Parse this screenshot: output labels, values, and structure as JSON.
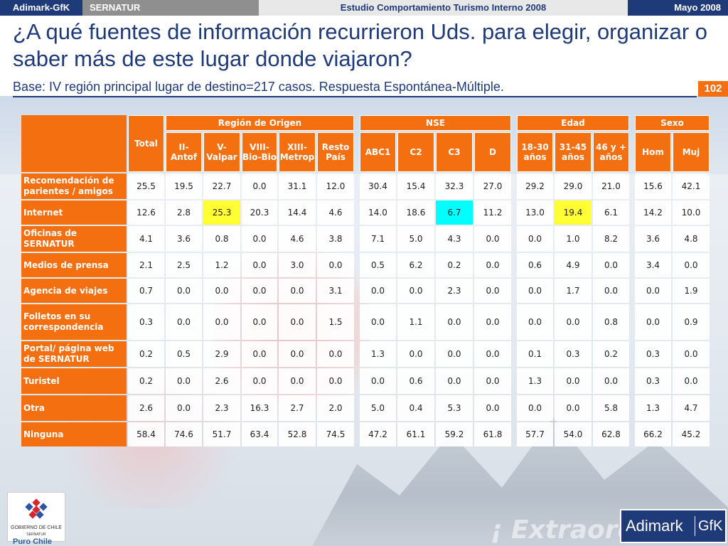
{
  "topbar": {
    "brand": "Adimark-GfK",
    "client": "SERNATUR",
    "study": "Estudio Comportamiento Turismo Interno 2008",
    "date": "Mayo 2008"
  },
  "title": "¿A qué fuentes de información recurrieron Uds. para elegir, organizar o saber más de este lugar donde viajaron?",
  "subtitle": "Base: IV región principal lugar de destino=217 casos.  Respuesta Espontánea-Múltiple.",
  "page_number": "102",
  "table": {
    "total_header": "Total",
    "groups": [
      "Región de Origen",
      "NSE",
      "Edad",
      "Sexo"
    ],
    "region_cols": [
      {
        "line1": "II-",
        "line2": "Antof"
      },
      {
        "line1": "V-",
        "line2": "Valpar"
      },
      {
        "line1": "VIII-",
        "line2": "Bio-Bio"
      },
      {
        "line1": "XIII-",
        "line2": "Metrop"
      },
      {
        "line1": "Resto",
        "line2": "País"
      }
    ],
    "nse_cols": [
      "ABC1",
      "C2",
      "C3",
      "D"
    ],
    "edad_cols": [
      {
        "line1": "18-30",
        "line2": "años"
      },
      {
        "line1": "31-45",
        "line2": "años"
      },
      {
        "line1": "46 y +",
        "line2": "años"
      }
    ],
    "sexo_cols": [
      "Hom",
      "Muj"
    ],
    "rows": [
      {
        "label": "Recomendación de parientes / amigos",
        "total": "25.5",
        "region": [
          "19.5",
          "22.7",
          "0.0",
          "31.1",
          "12.0"
        ],
        "nse": [
          "30.4",
          "15.4",
          "32.3",
          "27.0"
        ],
        "edad": [
          "29.2",
          "29.0",
          "21.0"
        ],
        "sexo": [
          "15.6",
          "42.1"
        ]
      },
      {
        "label": "Internet",
        "total": "12.6",
        "region": [
          "2.8",
          "25.3",
          "20.3",
          "14.4",
          "4.6"
        ],
        "nse": [
          "14.0",
          "18.6",
          "6.7",
          "11.2"
        ],
        "edad": [
          "13.0",
          "19.4",
          "6.1"
        ],
        "sexo": [
          "14.2",
          "10.0"
        ]
      },
      {
        "label": "Oficinas de SERNATUR",
        "total": "4.1",
        "region": [
          "3.6",
          "0.8",
          "0.0",
          "4.6",
          "3.8"
        ],
        "nse": [
          "7.1",
          "5.0",
          "4.3",
          "0.0"
        ],
        "edad": [
          "0.0",
          "1.0",
          "8.2"
        ],
        "sexo": [
          "3.6",
          "4.8"
        ]
      },
      {
        "label": "Medios de prensa",
        "total": "2.1",
        "region": [
          "2.5",
          "1.2",
          "0.0",
          "3.0",
          "0.0"
        ],
        "nse": [
          "0.5",
          "6.2",
          "0.2",
          "0.0"
        ],
        "edad": [
          "0.6",
          "4.9",
          "0.0"
        ],
        "sexo": [
          "3.4",
          "0.0"
        ]
      },
      {
        "label": "Agencia de viajes",
        "total": "0.7",
        "region": [
          "0.0",
          "0.0",
          "0.0",
          "0.0",
          "3.1"
        ],
        "nse": [
          "0.0",
          "0.0",
          "2.3",
          "0.0"
        ],
        "edad": [
          "0.0",
          "1.7",
          "0.0"
        ],
        "sexo": [
          "0.0",
          "1.9"
        ]
      },
      {
        "label": "Folletos en su correspondencia",
        "total": "0.3",
        "region": [
          "0.0",
          "0.0",
          "0.0",
          "0.0",
          "1.5"
        ],
        "nse": [
          "0.0",
          "1.1",
          "0.0",
          "0.0"
        ],
        "edad": [
          "0.0",
          "0.0",
          "0.8"
        ],
        "sexo": [
          "0.0",
          "0.9"
        ]
      },
      {
        "label": "Portal/ página web de SERNATUR",
        "total": "0.2",
        "region": [
          "0.5",
          "2.9",
          "0.0",
          "0.0",
          "0.0"
        ],
        "nse": [
          "1.3",
          "0.0",
          "0.0",
          "0.0"
        ],
        "edad": [
          "0.1",
          "0.3",
          "0.2"
        ],
        "sexo": [
          "0.3",
          "0.0"
        ]
      },
      {
        "label": "Turistel",
        "total": "0.2",
        "region": [
          "0.0",
          "2.6",
          "0.0",
          "0.0",
          "0.0"
        ],
        "nse": [
          "0.0",
          "0.6",
          "0.0",
          "0.0"
        ],
        "edad": [
          "1.3",
          "0.0",
          "0.0"
        ],
        "sexo": [
          "0.3",
          "0.0"
        ]
      },
      {
        "label": "Otra",
        "total": "2.6",
        "region": [
          "0.0",
          "2.3",
          "16.3",
          "2.7",
          "2.0"
        ],
        "nse": [
          "5.0",
          "0.4",
          "5.3",
          "0.0"
        ],
        "edad": [
          "0.0",
          "0.0",
          "5.8"
        ],
        "sexo": [
          "1.3",
          "4.7"
        ]
      },
      {
        "label": "Ninguna",
        "total": "58.4",
        "region": [
          "74.6",
          "51.7",
          "63.4",
          "52.8",
          "74.5"
        ],
        "nse": [
          "47.2",
          "61.1",
          "59.2",
          "61.8"
        ],
        "edad": [
          "57.7",
          "54.0",
          "62.8"
        ],
        "sexo": [
          "66.2",
          "45.2"
        ]
      }
    ],
    "highlight_colors": {
      "yellow": "#ffff33",
      "cyan": "#00ffff"
    }
  },
  "background_text": "¡ Extraord",
  "logos": {
    "gobierno_line1": "GOBIERNO DE CHILE",
    "gobierno_line2": "SERNATUR",
    "puro_chile": "Puro Chile",
    "adimark": "Adimark",
    "gfk": "GfK"
  },
  "colors": {
    "accent_orange": "#f36f10",
    "brand_navy": "#1e3a78"
  }
}
